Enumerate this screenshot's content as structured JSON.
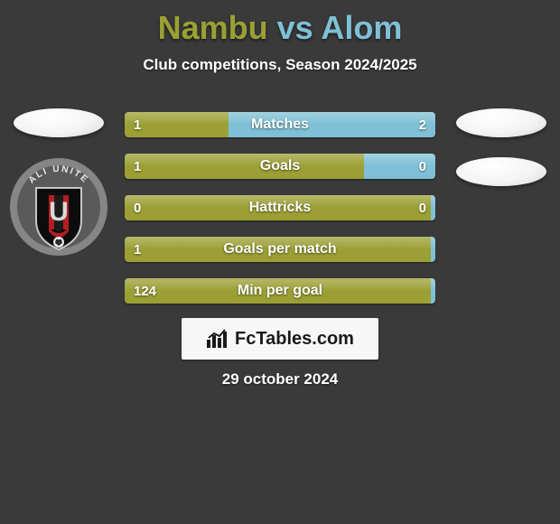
{
  "background_color": "#3a3a3a",
  "title": {
    "text": "Nambu vs Alom",
    "player1": "Nambu",
    "player2": "Alom",
    "connector": " vs ",
    "color_player1": "#9aa033",
    "color_player2": "#7fc0d6",
    "fontsize": 36
  },
  "subtitle": {
    "text": "Club competitions, Season 2024/2025",
    "fontsize": 17,
    "color": "#ffffff"
  },
  "left_thumb": {
    "ellipse_color": "#f2f2f2",
    "badge": {
      "ring_color": "#7e7e7e",
      "ring_text": "ALI UNITE",
      "shield_fill": "#0c0c0c",
      "stripe_color": "#b11f22",
      "letters": "U"
    }
  },
  "right_thumb": {
    "ellipse_color": "#f2f2f2",
    "second_ellipse_color": "#f2f2f2"
  },
  "bars": {
    "track_base_color": "#4a4a4a",
    "left_color": "#9b9f34",
    "right_color": "#7fc0d6",
    "label_fontsize": 16,
    "value_fontsize": 15,
    "rows": [
      {
        "label": "Matches",
        "left_val": "1",
        "right_val": "2",
        "left_pct": 33.3,
        "right_pct": 66.7
      },
      {
        "label": "Goals",
        "left_val": "1",
        "right_val": "0",
        "left_pct": 77.0,
        "right_pct": 23.0
      },
      {
        "label": "Hattricks",
        "left_val": "0",
        "right_val": "0",
        "left_pct": 98.5,
        "right_pct": 1.5
      },
      {
        "label": "Goals per match",
        "left_val": "1",
        "right_val": "",
        "left_pct": 98.5,
        "right_pct": 1.5
      },
      {
        "label": "Min per goal",
        "left_val": "124",
        "right_val": "",
        "left_pct": 98.5,
        "right_pct": 1.5
      }
    ]
  },
  "footer": {
    "logo_text": "FcTables.com",
    "logo_bg": "#f7f7f7",
    "logo_text_color": "#1a1a1a",
    "date": "29 october 2024",
    "date_fontsize": 17
  }
}
